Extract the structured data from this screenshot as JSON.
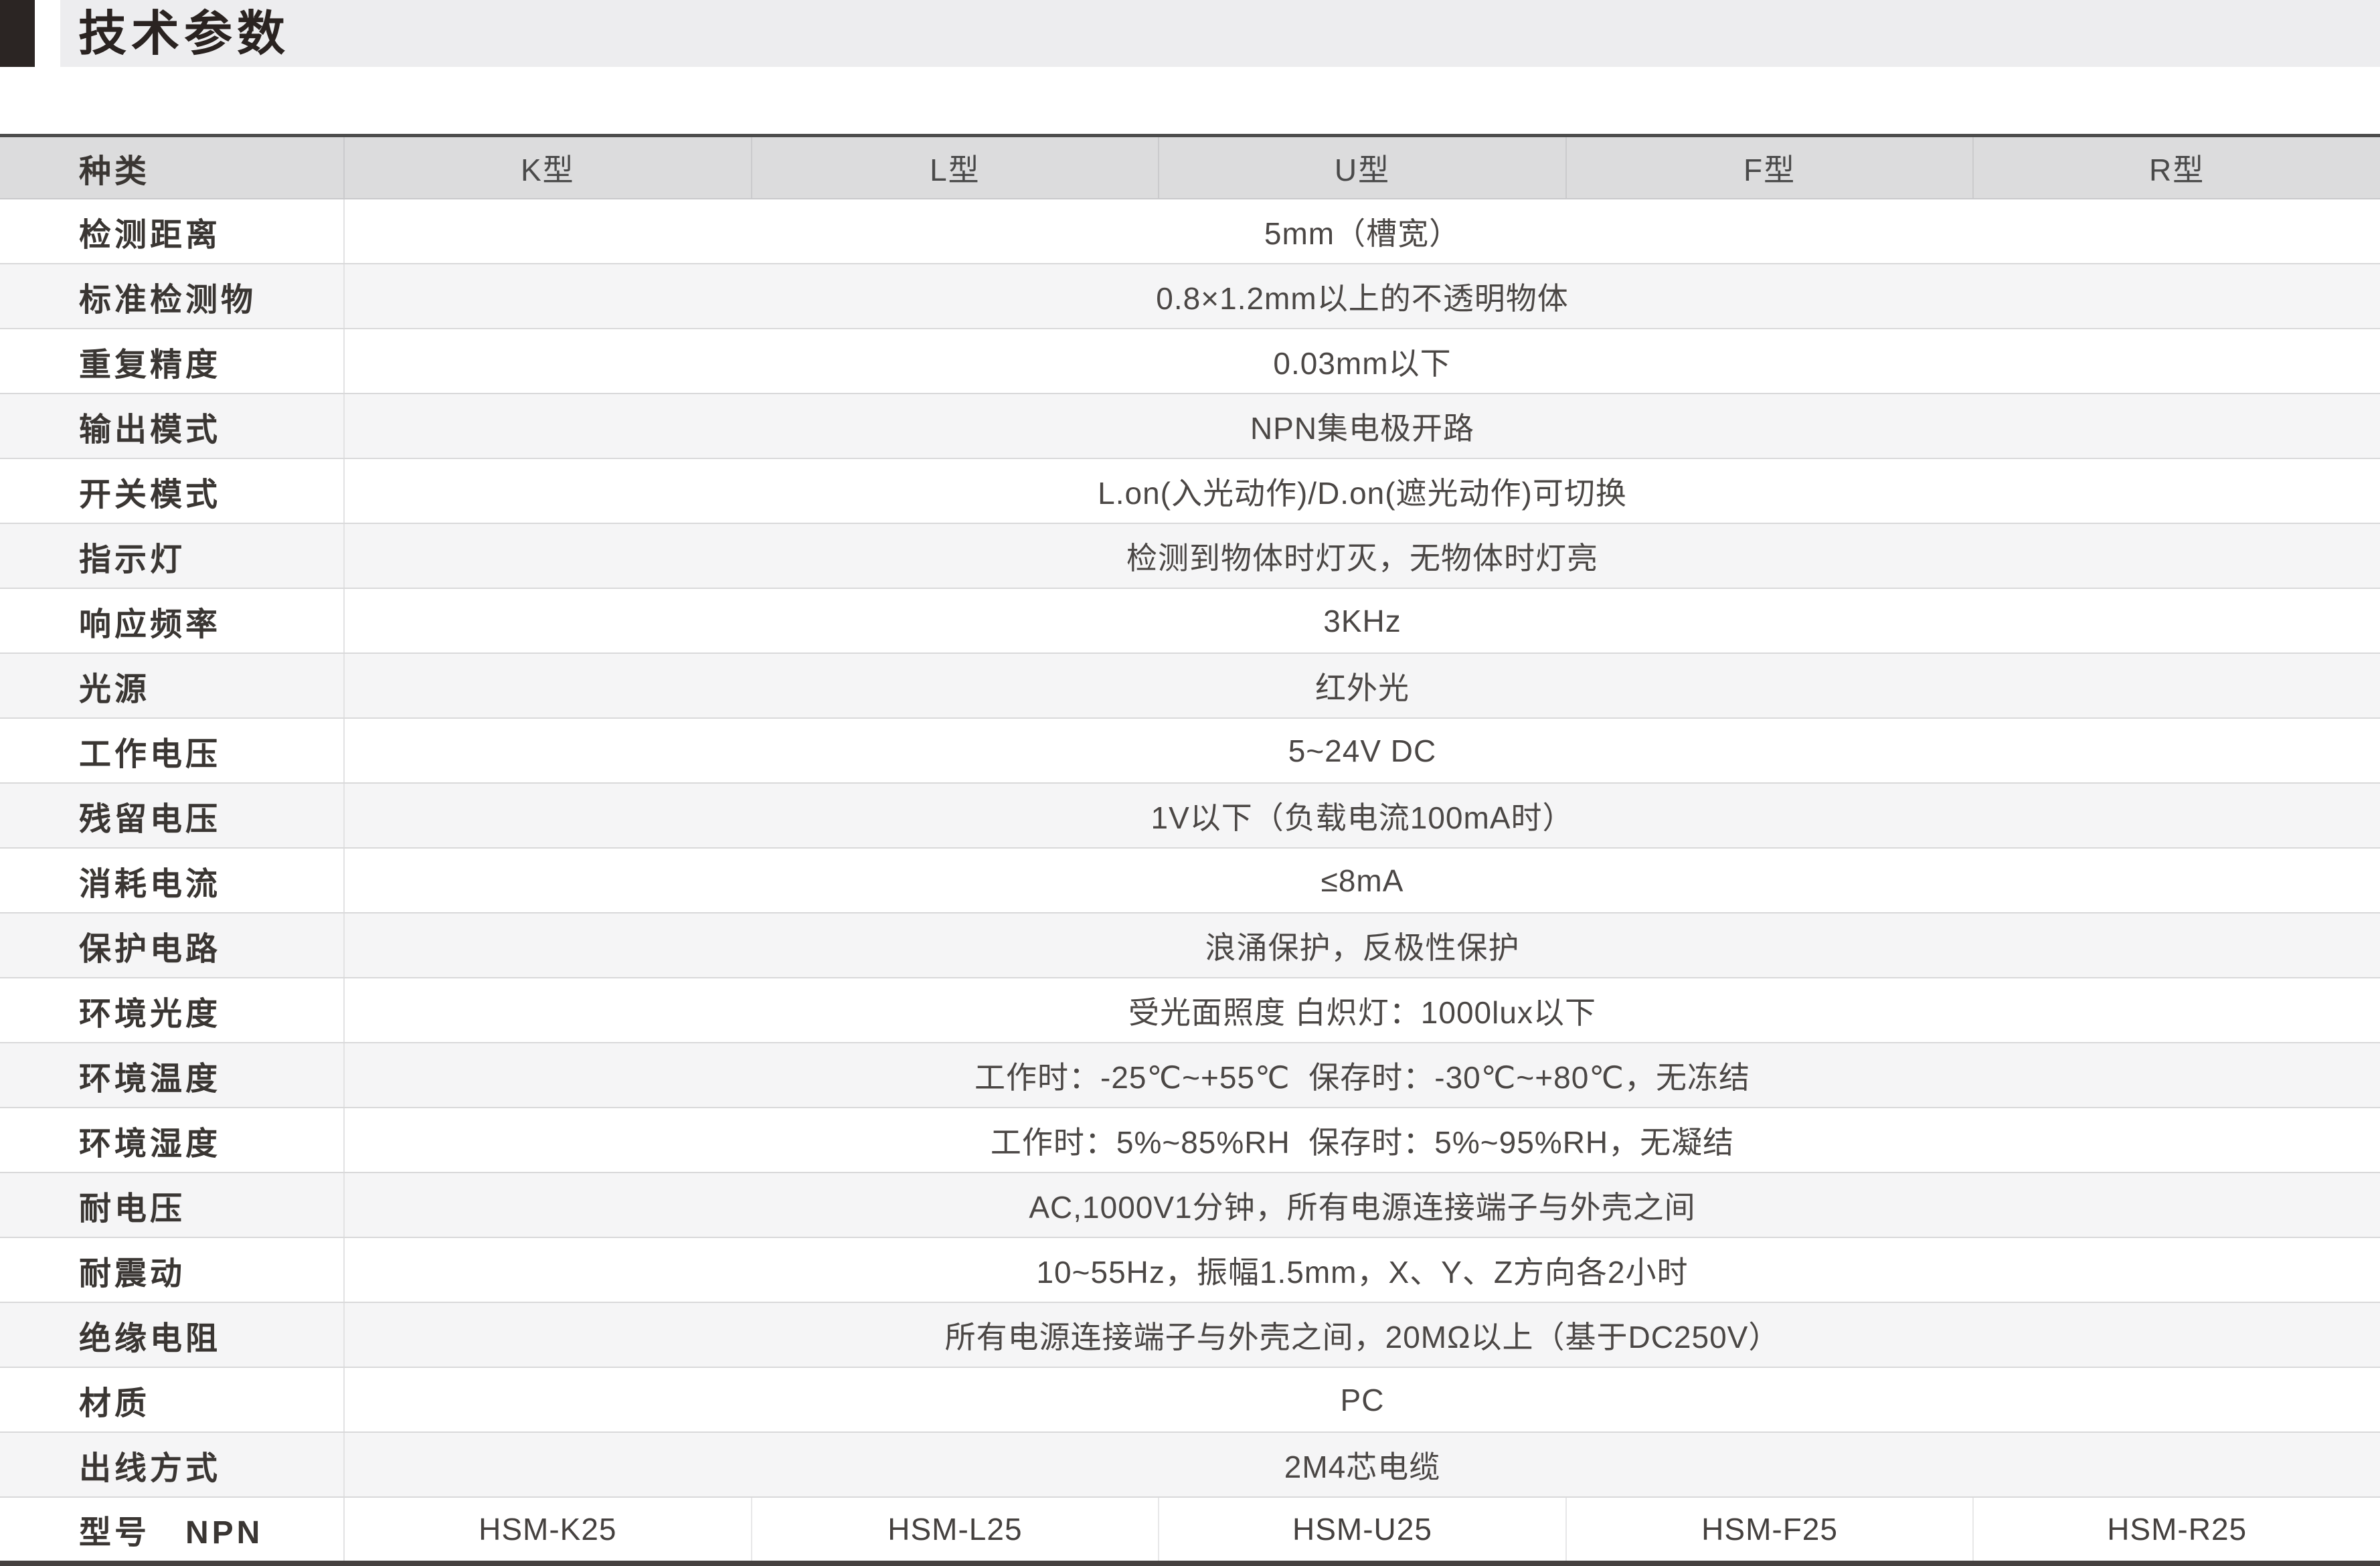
{
  "page": {
    "title": "技术参数",
    "colors": {
      "title_block": "#2b2523",
      "title_bar_bg": "#ededef",
      "header_bg": "#dcdcdd",
      "zebra_bg": "#f5f5f6",
      "top_border": "#4c4c4c",
      "bottom_border": "#454140",
      "label_text": "#3a3633",
      "value_text": "#4b4745"
    }
  },
  "table": {
    "header": {
      "label": "种类",
      "columns": [
        "K型",
        "L型",
        "U型",
        "F型",
        "R型"
      ]
    },
    "rows": [
      {
        "label": "检测距离",
        "value": "5mm（槽宽）"
      },
      {
        "label": "标准检测物",
        "value": "0.8×1.2mm以上的不透明物体"
      },
      {
        "label": "重复精度",
        "value": "0.03mm以下"
      },
      {
        "label": "输出模式",
        "value": "NPN集电极开路"
      },
      {
        "label": "开关模式",
        "value": "L.on(入光动作)/D.on(遮光动作)可切换"
      },
      {
        "label": "指示灯",
        "value": "检测到物体时灯灭，无物体时灯亮"
      },
      {
        "label": "响应频率",
        "value": "3KHz"
      },
      {
        "label": "光源",
        "value": "红外光"
      },
      {
        "label": "工作电压",
        "value": "5~24V DC"
      },
      {
        "label": "残留电压",
        "value": "1V以下（负载电流100mA时）"
      },
      {
        "label": "消耗电流",
        "value": "≤8mA"
      },
      {
        "label": "保护电路",
        "value": "浪涌保护，反极性保护"
      },
      {
        "label": "环境光度",
        "value": "受光面照度 白炽灯：1000lux以下"
      },
      {
        "label": "环境温度",
        "value": "工作时：-25℃~+55℃  保存时：-30℃~+80℃，无冻结"
      },
      {
        "label": "环境湿度",
        "value": "工作时：5%~85%RH  保存时：5%~95%RH，无凝结"
      },
      {
        "label": "耐电压",
        "value": "AC,1000V1分钟，所有电源连接端子与外壳之间"
      },
      {
        "label": "耐震动",
        "value": "10~55Hz，振幅1.5mm，X、Y、Z方向各2小时"
      },
      {
        "label": "绝缘电阻",
        "value": "所有电源连接端子与外壳之间，20MΩ以上（基于DC250V）"
      },
      {
        "label": "材质",
        "value": "PC"
      },
      {
        "label": "出线方式",
        "value": "2M4芯电缆"
      }
    ],
    "model_row": {
      "label": "型号　NPN",
      "values": [
        "HSM-K25",
        "HSM-L25",
        "HSM-U25",
        "HSM-F25",
        "HSM-R25"
      ]
    }
  }
}
